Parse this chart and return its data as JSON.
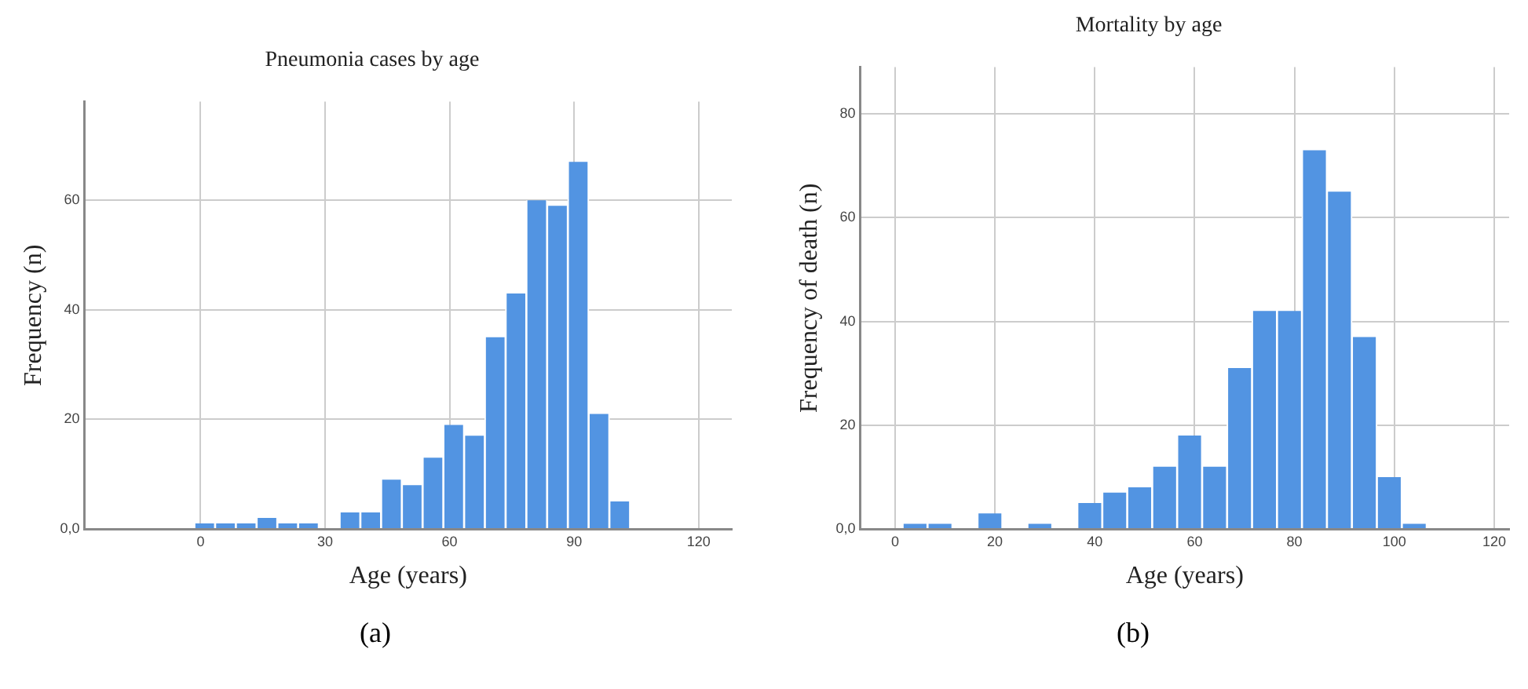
{
  "chart_data": [
    {
      "type": "histogram",
      "title": "Pneumonia cases by age",
      "xlabel": "Age (years)",
      "ylabel": "Frequency (n)",
      "color": "#5294e2",
      "bins": [
        -1.5,
        3.5,
        8.5,
        13.5,
        18.5,
        23.5,
        28.5,
        33.5,
        38.5,
        43.5,
        48.5,
        53.5,
        58.5,
        63.5,
        68.5,
        73.5,
        78.5,
        83.5,
        88.5,
        93.5,
        98.5,
        103.5
      ],
      "values": [
        1,
        1,
        1,
        2,
        1,
        1,
        0,
        3,
        3,
        9,
        8,
        13,
        19,
        17,
        35,
        43,
        60,
        59,
        67,
        21,
        5
      ],
      "xlim": [
        -28,
        128
      ],
      "xticks": [
        0,
        30,
        60,
        90,
        120
      ],
      "ylim": [
        0,
        78
      ],
      "yticks": [
        {
          "value": 0,
          "label": "0,0"
        },
        20,
        40,
        60
      ],
      "grid": true,
      "annotations": [
        "(a)"
      ]
    },
    {
      "type": "histogram",
      "title": "Mortality by age",
      "xlabel": "Age (years)",
      "ylabel": "Frequency of death (n)",
      "color": "#5294e2",
      "bins": [
        1.5,
        6.5,
        11.5,
        16.5,
        21.5,
        26.5,
        31.5,
        36.5,
        41.5,
        46.5,
        51.5,
        56.5,
        61.5,
        66.5,
        71.5,
        76.5,
        81.5,
        86.5,
        91.5,
        96.5,
        101.5,
        106.5
      ],
      "values": [
        1,
        1,
        0,
        3,
        0,
        1,
        0,
        5,
        7,
        8,
        12,
        18,
        12,
        31,
        42,
        42,
        73,
        65,
        37,
        10,
        1
      ],
      "xlim": [
        -7,
        123
      ],
      "xticks": [
        0,
        20,
        40,
        60,
        80,
        100,
        120
      ],
      "ylim": [
        0,
        89
      ],
      "yticks": [
        {
          "value": 0,
          "label": "0,0"
        },
        20,
        40,
        60,
        80
      ],
      "grid": true,
      "annotations": [
        "(b)"
      ]
    }
  ]
}
